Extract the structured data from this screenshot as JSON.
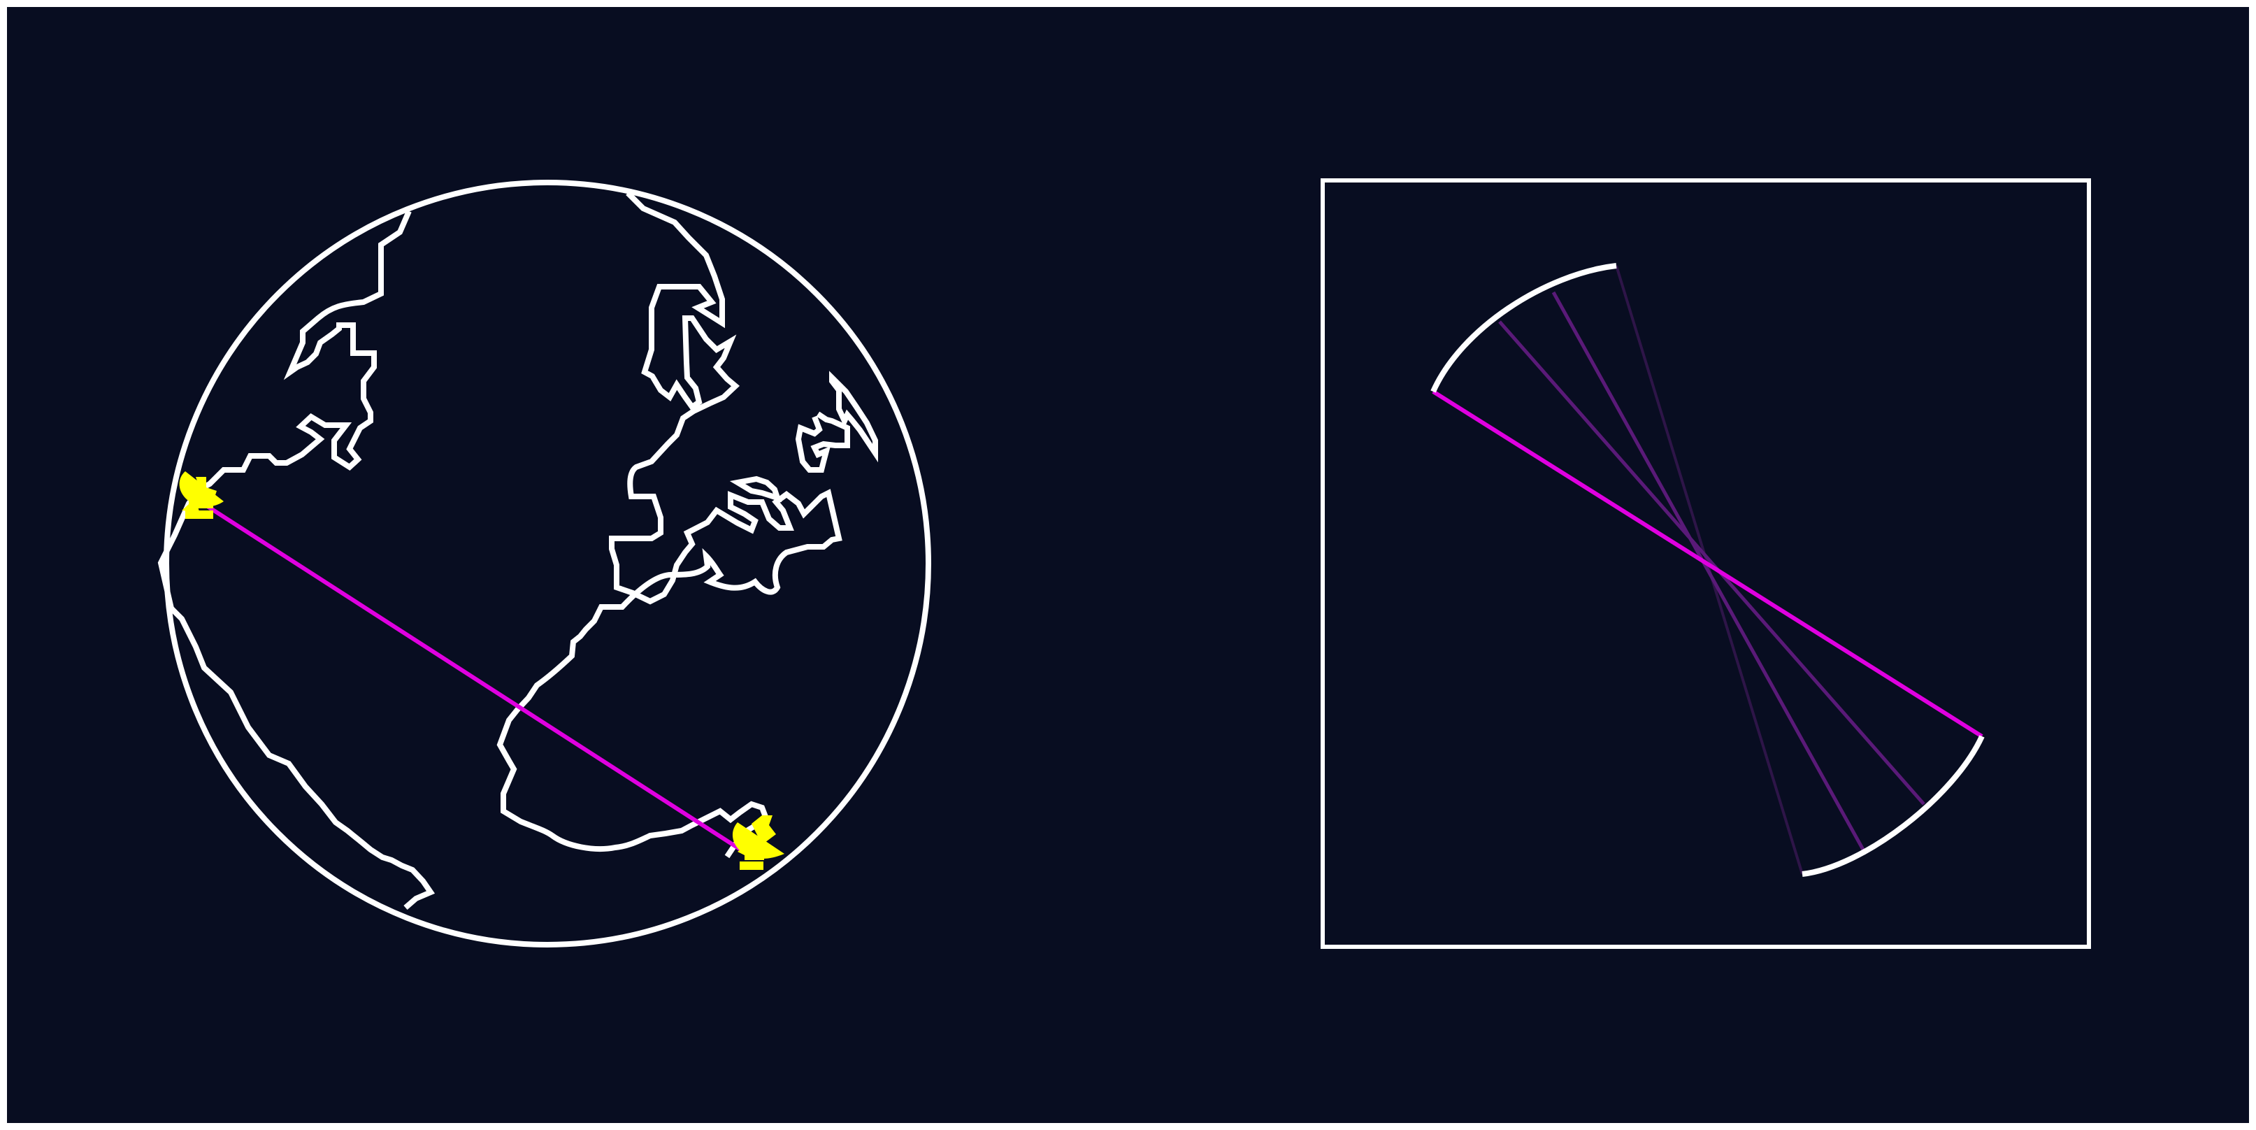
{
  "colors": {
    "background": "#080d21",
    "outline": "#ffffff",
    "baseline": "#e000e0",
    "faint_line": "#5a1a78",
    "fainter_line": "#2e1548",
    "dish": "#ffff00"
  },
  "globe": {
    "icon": "globe-icon",
    "continents": "europe-africa-americas-outline"
  },
  "antennas": [
    {
      "icon": "radio-telescope-dish-icon",
      "site": "west"
    },
    {
      "icon": "radio-telescope-dish-icon",
      "site": "south-east"
    }
  ],
  "aperture_panel": {
    "icon": "baseline-uv-sweep-icon",
    "sweep_lines": 4
  }
}
